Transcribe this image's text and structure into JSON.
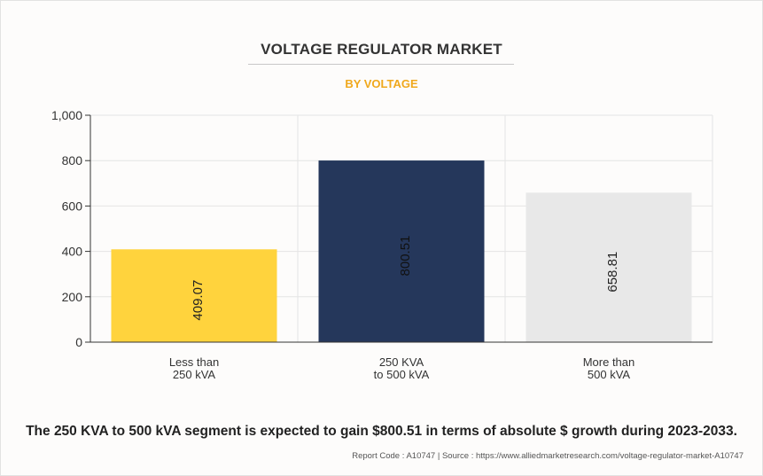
{
  "header": {
    "title": "VOLTAGE REGULATOR MARKET",
    "subtitle": "BY VOLTAGE"
  },
  "colors": {
    "subtitle": "#f0a81c",
    "grid": "#e4e4e4",
    "axis": "#333333"
  },
  "chart_data": {
    "type": "bar",
    "categories": [
      [
        "Less than",
        "250 kVA"
      ],
      [
        "250 KVA",
        "to 500 kVA"
      ],
      [
        "More than",
        "500 kVA"
      ]
    ],
    "values": [
      409.07,
      800.51,
      658.81
    ],
    "value_labels": [
      "409.07",
      "800.51",
      "658.81"
    ],
    "bar_colors": [
      "#ffd33d",
      "#25375b",
      "#e8e8e8"
    ],
    "label_colors": [
      "#222222",
      "#111111",
      "#222222"
    ],
    "ylim": [
      0,
      1000
    ],
    "yticks": [
      0,
      200,
      400,
      600,
      800,
      1000
    ],
    "ytick_labels": [
      "0",
      "200",
      "400",
      "600",
      "800",
      "1,000"
    ],
    "grid": true,
    "xlabel": "",
    "ylabel": ""
  },
  "footer": {
    "statement": "The 250 KVA to 500 kVA segment is expected to gain $800.51 in terms of absolute $ growth during 2023-2033.",
    "source": "Report Code : A10747  |  Source : https://www.alliedmarketresearch.com/voltage-regulator-market-A10747"
  }
}
